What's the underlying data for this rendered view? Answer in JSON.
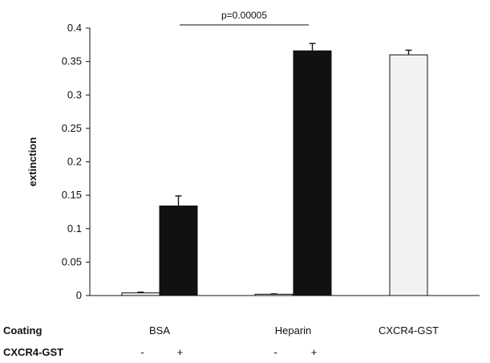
{
  "chart_data": {
    "type": "bar",
    "ylabel": "extinction",
    "ylim": [
      0,
      0.4
    ],
    "yticks": [
      "0",
      "0.05",
      "0.1",
      "0.15",
      "0.2",
      "0.25",
      "0.3",
      "0.35",
      "0.4"
    ],
    "groups": [
      {
        "label": "BSA",
        "bars": [
          {
            "cxcr4": "-",
            "value": 0.004,
            "error": 0.001,
            "fill": "#f2f2f2"
          },
          {
            "cxcr4": "+",
            "value": 0.134,
            "error": 0.015,
            "fill": "#111111"
          }
        ]
      },
      {
        "label": "Heparin",
        "bars": [
          {
            "cxcr4": "-",
            "value": 0.002,
            "error": 0.0005,
            "fill": "#f2f2f2"
          },
          {
            "cxcr4": "+",
            "value": 0.366,
            "error": 0.011,
            "fill": "#111111"
          }
        ]
      },
      {
        "label": "CXCR4-GST",
        "bars": [
          {
            "cxcr4": "",
            "value": 0.36,
            "error": 0.007,
            "fill": "#f2f2f2"
          }
        ]
      }
    ],
    "row_labels": {
      "coating": "Coating",
      "cxcr4": "CXCR4-GST"
    },
    "annotation": {
      "text": "p=0.00005",
      "from_group": 0,
      "to_group": 1
    }
  }
}
